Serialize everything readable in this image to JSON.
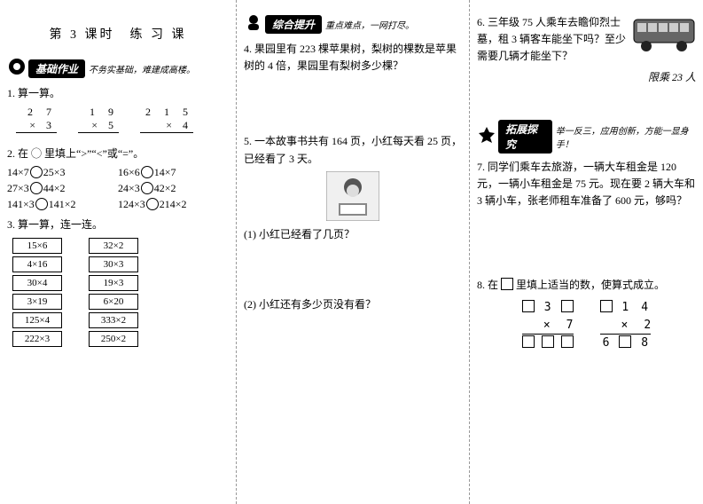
{
  "title": "第 3 课时　练 习 课",
  "sec_basic": {
    "label": "基础作业",
    "sub": "不务实基础，难建成高楼。"
  },
  "sec_comp": {
    "label": "综合提升",
    "sub": "重点难点，一网打尽。"
  },
  "sec_ext": {
    "label": "拓展探究",
    "sub": "举一反三，应用创新，方能一显身手！"
  },
  "q1_title": "1. 算一算。",
  "q1": [
    {
      "top": "2  7",
      "bot": "3"
    },
    {
      "top": "1  9",
      "bot": "5"
    },
    {
      "top": "2  1  5",
      "bot": "4"
    }
  ],
  "q2_title": "2. 在 ◯ 里填上“>”“<”或“=”。",
  "q2": [
    [
      "14×7",
      "25×3",
      "16×6",
      "14×7"
    ],
    [
      "27×3",
      "44×2",
      "24×3",
      "42×2"
    ],
    [
      "141×3",
      "141×2",
      "124×3",
      "214×2"
    ]
  ],
  "q3_title": "3. 算一算，连一连。",
  "q3_left": [
    "15×6",
    "4×16",
    "30×4",
    "3×19",
    "125×4",
    "222×3"
  ],
  "q3_right": [
    "32×2",
    "30×3",
    "19×3",
    "6×20",
    "333×2",
    "250×2"
  ],
  "q4": "4. 果园里有 223 棵苹果树，梨树的棵数是苹果树的 4 倍，果园里有梨树多少棵？",
  "q5": "5. 一本故事书共有 164 页，小红每天看 25 页，已经看了 3 天。",
  "q5a": "(1) 小红已经看了几页？",
  "q5b": "(2) 小红还有多少页没有看？",
  "q6": "6. 三年级 75 人乘车去瞻仰烈士墓，租 3 辆客车能坐下吗？至少需要几辆才能坐下？",
  "bus_cap": "限乘 23 人",
  "q7": "7. 同学们乘车去旅游，一辆大车租金是 120 元，一辆小车租金是 75 元。现在要 2 辆大车和 3 辆小车，张老师租车准备了 600 元，够吗？",
  "q8": "8. 在 □ 里填上适当的数，使算式成立。",
  "q8a": {
    "l1": [
      "□",
      "3",
      "□"
    ],
    "x": "7",
    "l3": [
      "□",
      "□",
      "□"
    ]
  },
  "q8b": {
    "l1": [
      "□",
      "1",
      "4"
    ],
    "x": "2",
    "l3": [
      "6",
      "□",
      "8"
    ]
  }
}
